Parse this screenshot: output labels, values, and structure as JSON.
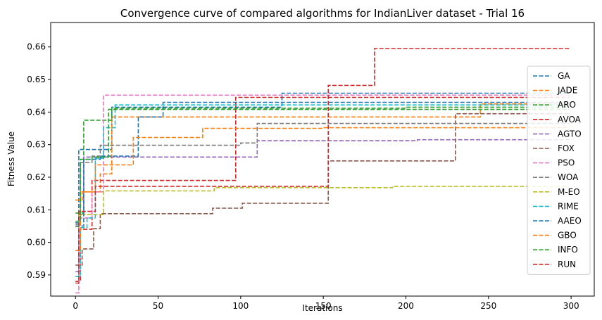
{
  "chart_data": {
    "type": "line",
    "title": "Convergence curve of compared algorithms for IndianLiver dataset - Trial 16",
    "xlabel": "Iterations",
    "ylabel": "Fitness Value",
    "xlim": [
      -15,
      314
    ],
    "ylim": [
      0.5835,
      0.6675
    ],
    "xticks": [
      0,
      50,
      100,
      150,
      200,
      250,
      300
    ],
    "yticks": [
      0.59,
      0.6,
      0.61,
      0.62,
      0.63,
      0.64,
      0.65,
      0.66
    ],
    "ytick_labels": [
      "0.59",
      "0.60",
      "0.61",
      "0.62",
      "0.63",
      "0.64",
      "0.65",
      "0.66"
    ],
    "grid": false,
    "legend": "right",
    "line_style": "dashed",
    "series": [
      {
        "name": "GA",
        "color": "#1f77b4",
        "steps": [
          [
            0,
            0.606
          ],
          [
            2,
            0.6285
          ],
          [
            17,
            0.6285
          ],
          [
            22,
            0.6415
          ],
          [
            125,
            0.6415
          ],
          [
            125,
            0.6458
          ],
          [
            299,
            0.6458
          ]
        ]
      },
      {
        "name": "JADE",
        "color": "#ff7f0e",
        "steps": [
          [
            0,
            0.613
          ],
          [
            4,
            0.6155
          ],
          [
            15,
            0.621
          ],
          [
            22,
            0.6385
          ],
          [
            245,
            0.6385
          ],
          [
            245,
            0.6425
          ],
          [
            299,
            0.6425
          ]
        ]
      },
      {
        "name": "ARO",
        "color": "#2ca02c",
        "steps": [
          [
            0,
            0.609
          ],
          [
            5,
            0.6375
          ],
          [
            22,
            0.6412
          ],
          [
            200,
            0.6412
          ],
          [
            200,
            0.6415
          ],
          [
            299,
            0.6415
          ]
        ]
      },
      {
        "name": "AVOA",
        "color": "#d62728",
        "steps": [
          [
            0,
            0.588
          ],
          [
            3,
            0.604
          ],
          [
            10,
            0.619
          ],
          [
            97,
            0.619
          ],
          [
            97,
            0.6445
          ],
          [
            299,
            0.6445
          ]
        ]
      },
      {
        "name": "AGTO",
        "color": "#9467bd",
        "steps": [
          [
            0,
            0.591
          ],
          [
            2,
            0.6085
          ],
          [
            5,
            0.6262
          ],
          [
            110,
            0.6262
          ],
          [
            110,
            0.6312
          ],
          [
            207,
            0.6312
          ],
          [
            207,
            0.6315
          ],
          [
            299,
            0.6315
          ]
        ]
      },
      {
        "name": "FOX",
        "color": "#8c564b",
        "steps": [
          [
            0,
            0.593
          ],
          [
            4,
            0.598
          ],
          [
            11,
            0.6042
          ],
          [
            15,
            0.6088
          ],
          [
            83,
            0.6088
          ],
          [
            83,
            0.6105
          ],
          [
            101,
            0.6105
          ],
          [
            101,
            0.612
          ],
          [
            153,
            0.612
          ],
          [
            153,
            0.625
          ],
          [
            230,
            0.625
          ],
          [
            230,
            0.6395
          ],
          [
            299,
            0.6395
          ]
        ]
      },
      {
        "name": "PSO",
        "color": "#e377c2",
        "steps": [
          [
            0,
            0.5845
          ],
          [
            2,
            0.6075
          ],
          [
            10,
            0.6155
          ],
          [
            17,
            0.6452
          ],
          [
            299,
            0.6452
          ]
        ]
      },
      {
        "name": "WOA",
        "color": "#7f7f7f",
        "steps": [
          [
            0,
            0.6055
          ],
          [
            3,
            0.6245
          ],
          [
            10,
            0.6265
          ],
          [
            15,
            0.6298
          ],
          [
            100,
            0.6298
          ],
          [
            100,
            0.6305
          ],
          [
            110,
            0.6305
          ],
          [
            110,
            0.6365
          ],
          [
            299,
            0.6365
          ]
        ]
      },
      {
        "name": "M-EO",
        "color": "#bcbd22",
        "steps": [
          [
            0,
            0.6048
          ],
          [
            2,
            0.6085
          ],
          [
            17,
            0.6158
          ],
          [
            84,
            0.6158
          ],
          [
            84,
            0.6168
          ],
          [
            192,
            0.6168
          ],
          [
            192,
            0.6172
          ],
          [
            299,
            0.6172
          ]
        ]
      },
      {
        "name": "RIME",
        "color": "#17becf",
        "steps": [
          [
            0,
            0.5895
          ],
          [
            3,
            0.6045
          ],
          [
            7,
            0.6075
          ],
          [
            12,
            0.6258
          ],
          [
            17,
            0.6352
          ],
          [
            24,
            0.6422
          ],
          [
            299,
            0.6422
          ]
        ]
      },
      {
        "name": "AAEO",
        "color": "#1f77b4",
        "steps": [
          [
            0,
            0.605
          ],
          [
            5,
            0.6255
          ],
          [
            15,
            0.6265
          ],
          [
            38,
            0.6385
          ],
          [
            53,
            0.6385
          ],
          [
            53,
            0.643
          ],
          [
            299,
            0.643
          ]
        ]
      },
      {
        "name": "GBO",
        "color": "#ff7f0e",
        "steps": [
          [
            0,
            0.5975
          ],
          [
            3,
            0.6155
          ],
          [
            12,
            0.6238
          ],
          [
            35,
            0.6322
          ],
          [
            77,
            0.6322
          ],
          [
            77,
            0.635
          ],
          [
            150,
            0.635
          ],
          [
            150,
            0.6352
          ],
          [
            299,
            0.6352
          ]
        ]
      },
      {
        "name": "INFO",
        "color": "#2ca02c",
        "steps": [
          [
            0,
            0.6065
          ],
          [
            3,
            0.6255
          ],
          [
            10,
            0.6262
          ],
          [
            20,
            0.6408
          ],
          [
            299,
            0.6408
          ]
        ]
      },
      {
        "name": "RUN",
        "color": "#d62728",
        "steps": [
          [
            0,
            0.5875
          ],
          [
            2,
            0.6095
          ],
          [
            12,
            0.6172
          ],
          [
            153,
            0.6172
          ],
          [
            153,
            0.6482
          ],
          [
            181,
            0.6482
          ],
          [
            181,
            0.6595
          ],
          [
            299,
            0.6595
          ]
        ]
      }
    ]
  }
}
